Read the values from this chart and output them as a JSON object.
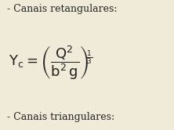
{
  "background_color": "#f0ead8",
  "text_top": "- Canais retangulares:",
  "text_bottom": "- Canais triangulares:",
  "text_fontsize": 9,
  "formula_fontsize": 13,
  "text_color": "#222222"
}
